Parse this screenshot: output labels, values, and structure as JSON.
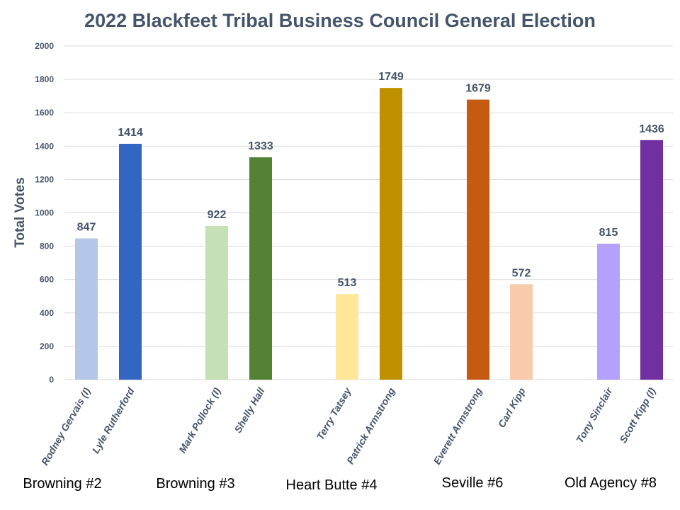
{
  "chart_data": {
    "type": "bar",
    "title": "2022 Blackfeet Tribal Business Council General Election",
    "ylabel": "Total Votes",
    "xlabel": "",
    "ylim": [
      0,
      2000
    ],
    "yticks": [
      "0",
      "200",
      "400",
      "600",
      "800",
      "1000",
      "1200",
      "1400",
      "1600",
      "1800",
      "2000"
    ],
    "grid": true,
    "categories": [
      "Rodney Gervais (I)",
      "Lyle Rutherford",
      "Mark Pollock (I)",
      "Shelly Hall",
      "Terry Tatsey",
      "Patrick Armstrong",
      "Everett Armstrong",
      "Carl Kipp",
      "Tony Sinclair",
      "Scott Kipp (I)"
    ],
    "values": [
      847,
      1414,
      922,
      1333,
      513,
      1749,
      1679,
      572,
      815,
      1436
    ],
    "colors": [
      "#b4c7e7",
      "#3366c2",
      "#c5e0b4",
      "#548235",
      "#ffe699",
      "#bf9000",
      "#c55a11",
      "#f8cbad",
      "#b4a0ff",
      "#7030a0"
    ],
    "groups": [
      "Browning #2",
      "Browning #3",
      "Heart Butte #4",
      "Seville #6",
      "Old Agency #8"
    ]
  }
}
